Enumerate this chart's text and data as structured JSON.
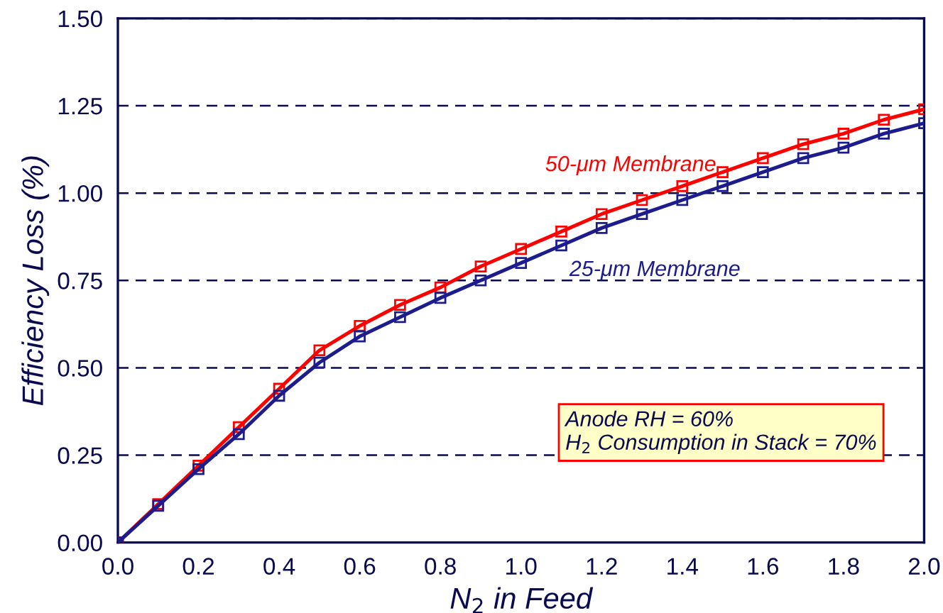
{
  "chart_data": {
    "type": "line",
    "xlabel": "N$_{2}$ in Feed",
    "ylabel": "Efficiency Loss (%)",
    "x": [
      0.0,
      0.1,
      0.2,
      0.3,
      0.4,
      0.5,
      0.6,
      0.7,
      0.8,
      0.9,
      1.0,
      1.1,
      1.2,
      1.3,
      1.4,
      1.5,
      1.6,
      1.7,
      1.8,
      1.9,
      2.0
    ],
    "series": [
      {
        "name": "50-μm Membrane",
        "color": "#ff0000",
        "values": [
          0.0,
          0.11,
          0.22,
          0.33,
          0.44,
          0.55,
          0.62,
          0.68,
          0.73,
          0.79,
          0.84,
          0.89,
          0.94,
          0.98,
          1.02,
          1.06,
          1.1,
          1.14,
          1.17,
          1.21,
          1.24
        ]
      },
      {
        "name": "25-μm Membrane",
        "color": "#1c1c8c",
        "values": [
          0.0,
          0.105,
          0.21,
          0.31,
          0.42,
          0.515,
          0.59,
          0.645,
          0.7,
          0.75,
          0.8,
          0.85,
          0.9,
          0.94,
          0.98,
          1.02,
          1.06,
          1.1,
          1.13,
          1.17,
          1.2
        ]
      }
    ],
    "annotations": [
      "Anode RH = 60%\nH$_{2}$ Consumption in Stack = 70%"
    ],
    "xlim": [
      0.0,
      2.0
    ],
    "ylim": [
      0.0,
      1.5
    ],
    "xticks": [
      {
        "value": 0.0,
        "label": "0.0"
      },
      0.2,
      0.4,
      0.6,
      0.8,
      {
        "value": 1.0,
        "label": "1.0"
      },
      1.2,
      1.4,
      1.6,
      1.8,
      {
        "value": 2.0,
        "label": "2.0"
      }
    ],
    "yticks": [
      {
        "value": 0.0,
        "label": "0.00"
      },
      0.25,
      {
        "value": 0.5,
        "label": "0.50"
      },
      0.75,
      {
        "value": 1.0,
        "label": "1.00"
      },
      1.25,
      {
        "value": 1.5,
        "label": "1.50"
      }
    ],
    "grid": "y",
    "legend": false,
    "marker": "square",
    "line_style": "solid"
  }
}
